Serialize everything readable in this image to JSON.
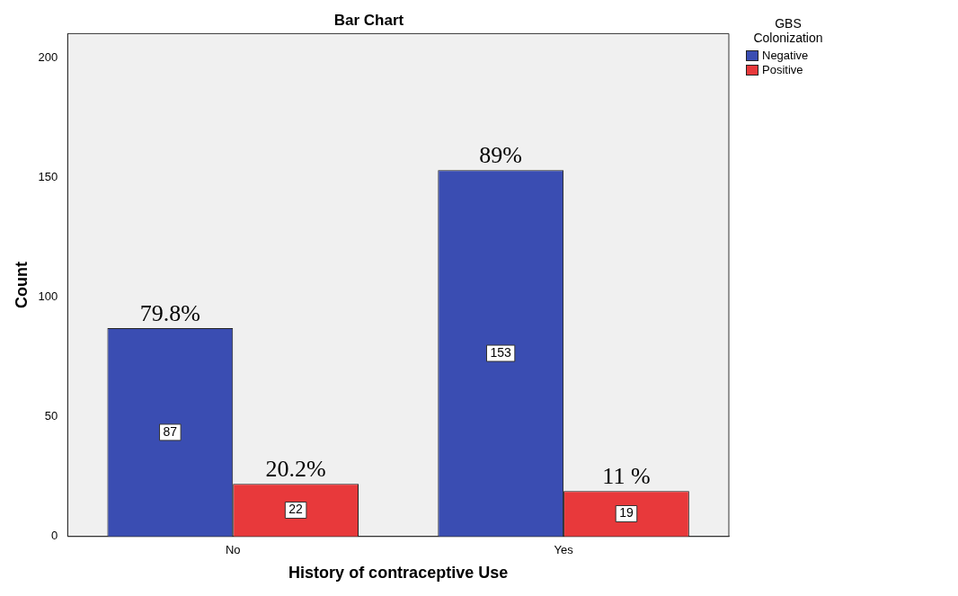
{
  "chart_data": {
    "type": "bar",
    "title": "Bar Chart",
    "xlabel": "History of contraceptive Use",
    "ylabel": "Count",
    "legend_title": "GBS Colonization",
    "legend": "top right",
    "categories": [
      "No",
      "Yes"
    ],
    "series": [
      {
        "name": "Negative",
        "color": "#3a4db2",
        "values": [
          87,
          153
        ]
      },
      {
        "name": "Positive",
        "color": "#e8393b",
        "values": [
          22,
          19
        ]
      }
    ],
    "annotations": [
      {
        "text": "79.8%",
        "x": "No",
        "y": 87
      },
      {
        "text": "20.2%",
        "x": "No",
        "y": 22
      },
      {
        "text": "89%",
        "x": "Yes",
        "y": 153
      },
      {
        "text": "11 %",
        "x": "Yes",
        "y": 19
      }
    ],
    "ylim": [
      0,
      210
    ],
    "yticks": [
      0,
      50,
      100,
      150,
      200
    ],
    "grid": false,
    "data_labels": true
  }
}
